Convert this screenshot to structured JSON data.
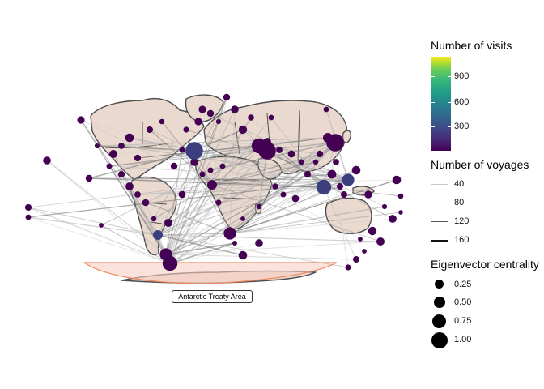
{
  "map": {
    "annotation": "Antarctic Treaty Area",
    "colors": {
      "land_fill": "#ead9cf",
      "land_border": "#4d4d4d",
      "route": "#888888",
      "treaty_fill": "#f9cfc3",
      "treaty_border": "#f08a60",
      "node_low": "#440154",
      "node_mid": "#3b3f7e"
    }
  },
  "legend": {
    "visits": {
      "title": "Number of visits",
      "ticks": [
        "900",
        "600",
        "300"
      ],
      "palette": "viridis"
    },
    "voyages": {
      "title": "Number of voyages",
      "labels": [
        "40",
        "80",
        "120",
        "160"
      ]
    },
    "centrality": {
      "title": "Eigenvector centrality",
      "labels": [
        "0.25",
        "0.50",
        "0.75",
        "1.00"
      ]
    }
  }
}
